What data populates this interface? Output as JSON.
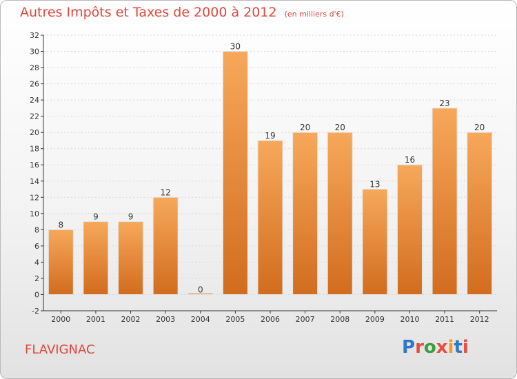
{
  "header": {
    "title": "Autres Impôts et Taxes de 2000 à 2012",
    "subtitle": "(en milliers d'€)"
  },
  "footer": {
    "commune": "FLAVIGNAC",
    "logo_text": "Proxiti",
    "logo_colors": [
      "#2f78c8",
      "#e84c3d",
      "#3a9e3f",
      "#e84c3d",
      "#f39b1f",
      "#2f78c8",
      "#e84c3d"
    ]
  },
  "colors": {
    "bar_top": "#f7a85a",
    "bar_bottom": "#d26c1e",
    "title": "#e0463c",
    "axis": "#333333",
    "grid": "#d7d7d7"
  },
  "chart_data": {
    "type": "bar",
    "title": "Autres Impôts et Taxes de 2000 à 2012",
    "subtitle": "(en milliers d'€)",
    "xlabel": "",
    "ylabel": "",
    "categories": [
      "2000",
      "2001",
      "2002",
      "2003",
      "2004",
      "2005",
      "2006",
      "2007",
      "2008",
      "2009",
      "2010",
      "2011",
      "2012"
    ],
    "values": [
      8,
      9,
      9,
      12,
      0,
      30,
      19,
      20,
      20,
      13,
      16,
      23,
      20
    ],
    "value_labels": [
      "8",
      "9",
      "9",
      "12",
      "0",
      "30",
      "19",
      "20",
      "20",
      "13",
      "16",
      "23",
      "20"
    ],
    "ylim": [
      -2,
      32
    ],
    "yticks": [
      -2,
      0,
      2,
      4,
      6,
      8,
      10,
      12,
      14,
      16,
      18,
      20,
      22,
      24,
      26,
      28,
      30,
      32
    ],
    "grid": true,
    "legend": "none"
  }
}
